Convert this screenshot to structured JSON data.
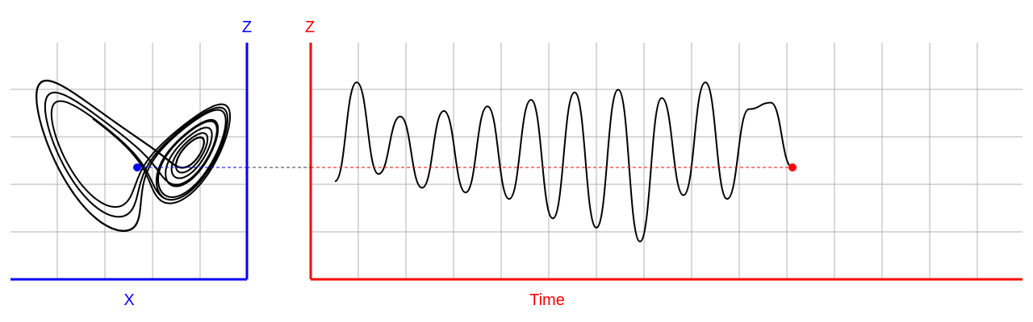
{
  "colors": {
    "phase_axis": "#0000ff",
    "time_axis": "#ff0000",
    "grid": "#b0b0b0",
    "trace": "#000000",
    "phase_marker": "#0000ff",
    "time_marker": "#ff0000",
    "link_dark": "#333333"
  },
  "chart_data": [
    {
      "type": "line",
      "panel": "phase-portrait",
      "xlabel": "X",
      "ylabel": "Z",
      "grid": true,
      "series": [
        {
          "points": []
        }
      ],
      "current_point": {
        "x": 0,
        "z": 0
      }
    },
    {
      "type": "line",
      "panel": "time-series",
      "xlabel": "Time",
      "ylabel": "Z",
      "grid": true,
      "peaks": [
        0.92,
        0.55,
        0.61,
        0.66,
        0.73,
        0.81,
        0.84,
        0.75,
        0.92,
        0.63,
        0.7
      ],
      "troughs": [
        -0.07,
        -0.22,
        -0.27,
        -0.34,
        -0.55,
        -0.65,
        -0.8,
        -0.3,
        -0.34
      ],
      "end_value": 0.0,
      "link_line": "dashed"
    }
  ]
}
